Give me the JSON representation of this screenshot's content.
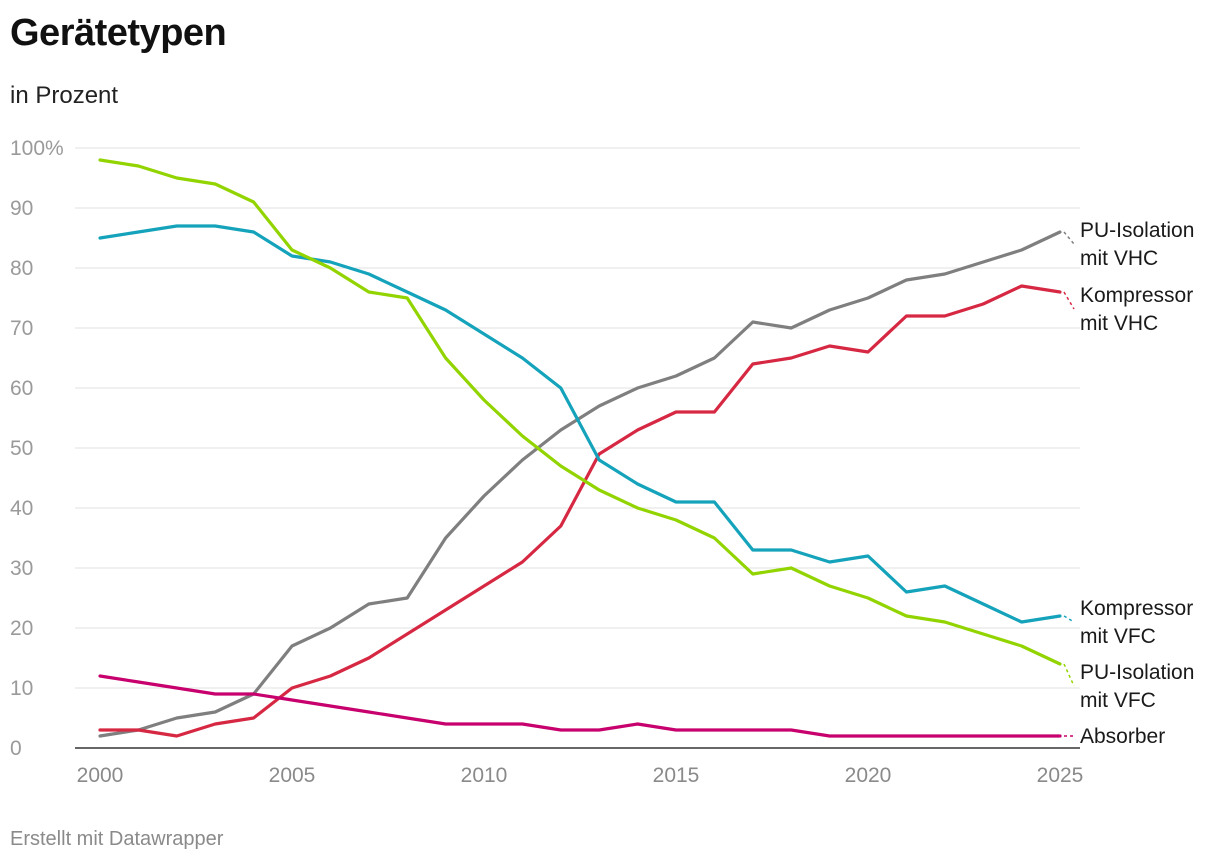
{
  "title": "Gerätetypen",
  "subtitle": "in Prozent",
  "footer": "Erstellt mit Datawrapper",
  "chart_data": {
    "type": "line",
    "title": "Gerätetypen",
    "subtitle": "in Prozent",
    "xlabel": "",
    "ylabel": "",
    "xlim": [
      2000,
      2025
    ],
    "ylim": [
      0,
      100
    ],
    "grid": true,
    "legend": "labels at line ends (right)",
    "y_ticks": [
      "100%",
      "90",
      "80",
      "70",
      "60",
      "50",
      "40",
      "30",
      "20",
      "10",
      "0"
    ],
    "y_tick_values": [
      100,
      90,
      80,
      70,
      60,
      50,
      40,
      30,
      20,
      10,
      0
    ],
    "x_ticks": [
      "2000",
      "2005",
      "2010",
      "2015",
      "2020",
      "2025"
    ],
    "x_tick_values": [
      2000,
      2005,
      2010,
      2015,
      2020,
      2025
    ],
    "x": [
      2000,
      2001,
      2002,
      2003,
      2004,
      2005,
      2006,
      2007,
      2008,
      2009,
      2010,
      2011,
      2012,
      2013,
      2014,
      2015,
      2016,
      2017,
      2018,
      2019,
      2020,
      2021,
      2022,
      2023,
      2024,
      2025
    ],
    "series": [
      {
        "id": "pu-vhc",
        "label_lines": [
          "PU-Isolation",
          "mit VHC"
        ],
        "color": "#7f7f7f",
        "values": [
          2,
          3,
          5,
          6,
          9,
          17,
          20,
          24,
          25,
          35,
          42,
          48,
          53,
          57,
          60,
          62,
          65,
          71,
          70,
          73,
          75,
          78,
          79,
          81,
          83,
          86
        ]
      },
      {
        "id": "kompressor-vhc",
        "label_lines": [
          "Kompressor",
          "mit VHC"
        ],
        "color": "#d62842",
        "values": [
          3,
          3,
          2,
          4,
          5,
          10,
          12,
          15,
          19,
          23,
          27,
          31,
          37,
          49,
          53,
          56,
          56,
          64,
          65,
          67,
          66,
          72,
          72,
          74,
          77,
          76
        ]
      },
      {
        "id": "kompressor-vfc",
        "label_lines": [
          "Kompressor",
          "mit VFC"
        ],
        "color": "#14a3bb",
        "values": [
          85,
          86,
          87,
          87,
          86,
          82,
          81,
          79,
          76,
          73,
          69,
          65,
          60,
          48,
          44,
          41,
          41,
          33,
          33,
          31,
          32,
          26,
          27,
          24,
          21,
          22
        ]
      },
      {
        "id": "pu-vfc",
        "label_lines": [
          "PU-Isolation",
          "mit VFC"
        ],
        "color": "#92d400",
        "values": [
          98,
          97,
          95,
          94,
          91,
          83,
          80,
          76,
          75,
          65,
          58,
          52,
          47,
          43,
          40,
          38,
          35,
          29,
          30,
          27,
          25,
          22,
          21,
          19,
          17,
          14
        ]
      },
      {
        "id": "absorber",
        "label_lines": [
          "Absorber"
        ],
        "color": "#c7006d",
        "values": [
          12,
          11,
          10,
          9,
          9,
          8,
          7,
          6,
          5,
          4,
          4,
          4,
          3,
          3,
          4,
          3,
          3,
          3,
          3,
          2,
          2,
          2,
          2,
          2,
          2,
          2
        ]
      }
    ]
  }
}
